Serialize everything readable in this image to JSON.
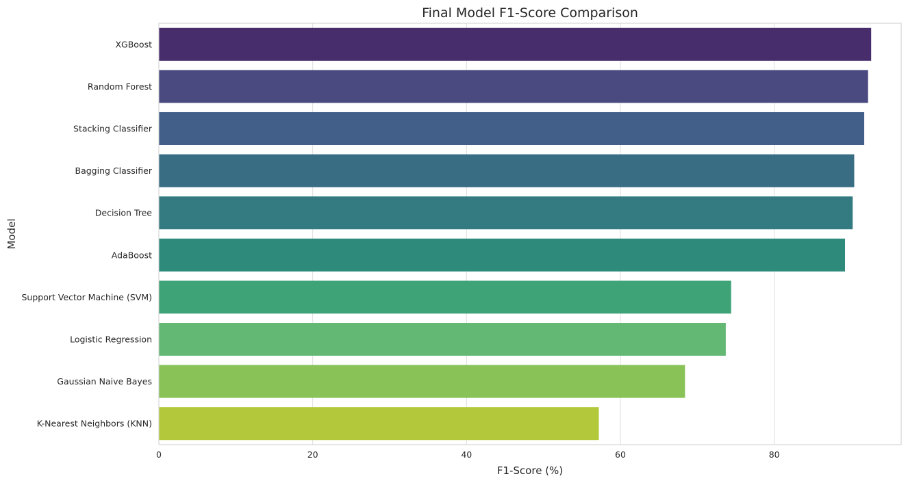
{
  "chart_data": {
    "type": "bar",
    "orientation": "horizontal",
    "title": "Final Model F1-Score Comparison",
    "xlabel": "F1-Score (%)",
    "ylabel": "Model",
    "categories": [
      "XGBoost",
      "Random Forest",
      "Stacking Classifier",
      "Bagging Classifier",
      "Decision Tree",
      "AdaBoost",
      "Support Vector Machine (SVM)",
      "Logistic Regression",
      "Gaussian Naive Bayes",
      "K-Nearest Neighbors (KNN)"
    ],
    "values": [
      92.6,
      92.2,
      91.7,
      90.4,
      90.2,
      89.2,
      74.4,
      73.7,
      68.4,
      57.2
    ],
    "colors": [
      "#472d6c",
      "#4a4a81",
      "#425f8a",
      "#386d84",
      "#337b80",
      "#2e8b7c",
      "#3fa378",
      "#63b873",
      "#89c257",
      "#b3c93b"
    ],
    "xlim": [
      0,
      96.5
    ],
    "xticks": [
      0,
      20,
      40,
      60,
      80
    ],
    "grid": true,
    "legend": "none"
  }
}
